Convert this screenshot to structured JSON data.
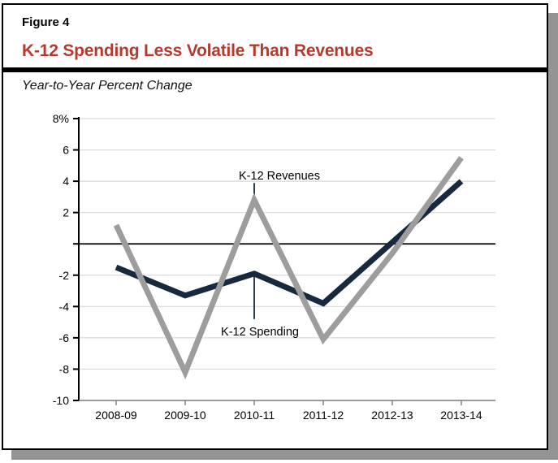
{
  "figure": {
    "label": "Figure 4",
    "title": "K-12 Spending Less Volatile Than Revenues",
    "subtitle": "Year-to-Year Percent Change"
  },
  "colors": {
    "title_red": "#b53a2d",
    "spending_navy": "#17293e",
    "revenues_gray": "#9d9d9d",
    "gridline_gray": "#d9d9d9",
    "axis_black": "#000000",
    "x_axis_gray": "#7a7a7a",
    "shadow_gray": "#949494"
  },
  "chart_data": {
    "type": "line",
    "title": "K-12 Spending Less Volatile Than Revenues",
    "subtitle": "Year-to-Year Percent Change",
    "categories": [
      "2008-09",
      "2009-10",
      "2010-11",
      "2011-12",
      "2012-13",
      "2013-14"
    ],
    "series": [
      {
        "name": "K-12 Spending",
        "color_key": "spending_navy",
        "values": [
          -1.5,
          -3.3,
          -1.9,
          -3.8,
          0.1,
          4.0
        ]
      },
      {
        "name": "K-12 Revenues",
        "color_key": "revenues_gray",
        "values": [
          1.2,
          -8.2,
          2.8,
          -6.1,
          -0.6,
          5.5
        ]
      }
    ],
    "ylim": [
      -10,
      8
    ],
    "y_ticks": [
      {
        "value": 8,
        "label": "8%"
      },
      {
        "value": 6,
        "label": "6"
      },
      {
        "value": 4,
        "label": "4"
      },
      {
        "value": 2,
        "label": "2"
      },
      {
        "value": 0,
        "label": ""
      },
      {
        "value": -2,
        "label": "-2"
      },
      {
        "value": -4,
        "label": "-4"
      },
      {
        "value": -6,
        "label": "-6"
      },
      {
        "value": -8,
        "label": "-8"
      },
      {
        "value": -10,
        "label": "-10"
      }
    ],
    "grid": true,
    "zero_line": true,
    "legend_position": "inline-annotations",
    "annotations": [
      {
        "text": "K-12 Revenues",
        "series": "K-12 Revenues",
        "category_index": 2,
        "placement": "above"
      },
      {
        "text": "K-12 Spending",
        "series": "K-12 Spending",
        "category_index": 2,
        "placement": "below"
      }
    ]
  }
}
